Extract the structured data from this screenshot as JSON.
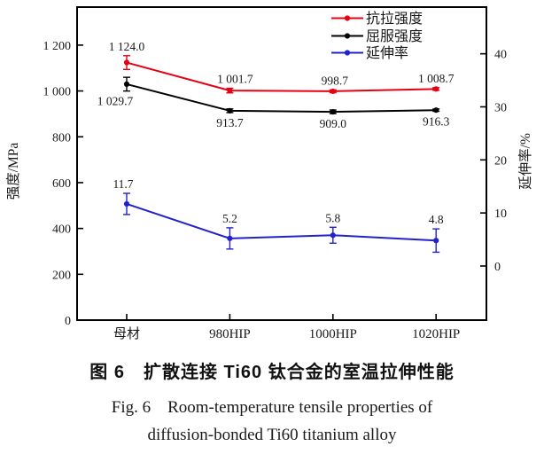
{
  "figure": {
    "caption_zh": "图 6　扩散连接 Ti60 钛合金的室温拉伸性能",
    "caption_en_line1": "Fig. 6　Room-temperature tensile properties of",
    "caption_en_line2": "diffusion-bonded Ti60 titanium alloy"
  },
  "chart_data": {
    "type": "line",
    "categories": [
      "母材",
      "980HIP",
      "1000HIP",
      "1020HIP"
    ],
    "series": [
      {
        "name": "抗拉强度",
        "color": "#e60012",
        "axis": "left",
        "values": [
          1124.0,
          1001.7,
          998.7,
          1008.7
        ],
        "point_labels": [
          "1 124.0",
          "1 001.7",
          "998.7",
          "1 008.7"
        ],
        "errors": [
          30,
          10,
          6,
          6
        ],
        "label_position": "above",
        "label_dx": [
          0,
          6,
          2,
          0
        ]
      },
      {
        "name": "屈服强度",
        "color": "#000000",
        "axis": "left",
        "values": [
          1029.7,
          913.7,
          909.0,
          916.3
        ],
        "point_labels": [
          "1 029.7",
          "913.7",
          "909.0",
          "916.3"
        ],
        "errors": [
          30,
          8,
          8,
          5
        ],
        "label_position": "below",
        "label_dx": [
          -13,
          0,
          0,
          0
        ]
      },
      {
        "name": "延伸率",
        "color": "#2222cc",
        "axis": "right",
        "values": [
          11.7,
          5.2,
          5.8,
          4.8
        ],
        "point_labels": [
          "11.7",
          "5.2",
          "5.8",
          "4.8"
        ],
        "errors": [
          2.0,
          2.0,
          1.5,
          2.2
        ],
        "label_position": "above",
        "label_dx": [
          -4,
          0,
          0,
          0
        ]
      }
    ],
    "left_axis": {
      "label": "强度/MPa",
      "ticks": [
        0,
        200,
        400,
        600,
        800,
        1000,
        1200
      ],
      "tick_labels": [
        "0",
        "200",
        "400",
        "600",
        "800",
        "1 000",
        "1 200"
      ],
      "range": [
        0,
        1366
      ]
    },
    "right_axis": {
      "label": "延伸率/%",
      "ticks": [
        0,
        10,
        20,
        30,
        40
      ],
      "tick_labels": [
        "0",
        "10",
        "20",
        "30",
        "40"
      ],
      "range": [
        -10.2,
        48.8
      ]
    },
    "legend": {
      "position": "top-right-inside",
      "entries": [
        "抗拉强度",
        "屈服强度",
        "延伸率"
      ]
    },
    "grid": false,
    "title": "",
    "xlabel": "",
    "ylabel_left": "强度/MPa",
    "ylabel_right": "延伸率/%"
  }
}
